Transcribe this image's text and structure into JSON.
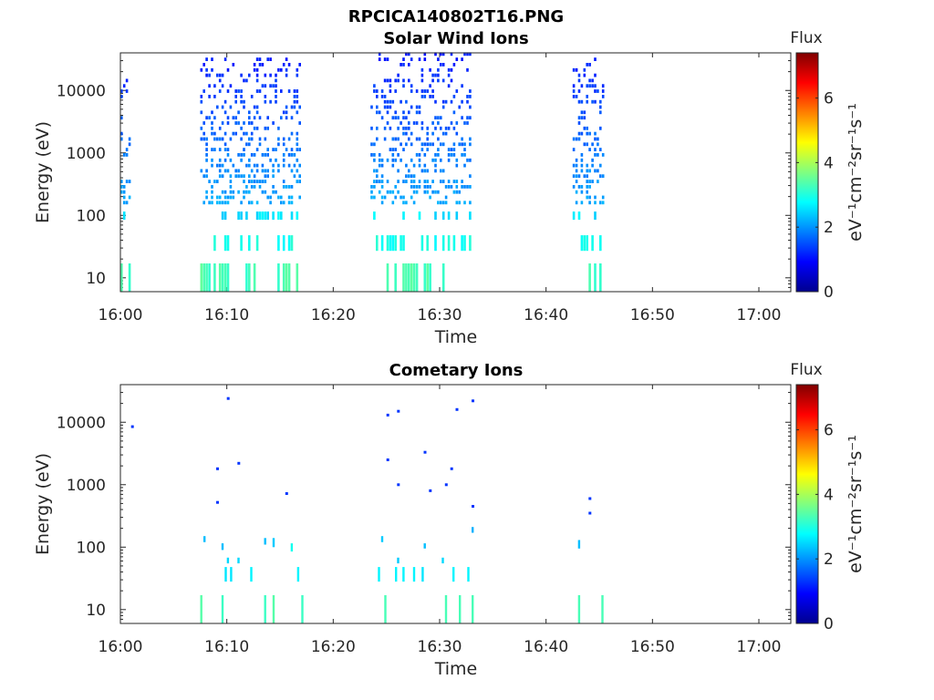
{
  "figure_title": "RPCICA140802T16.PNG",
  "chart_data": [
    {
      "type": "heatmap",
      "title": "Solar Wind Ions",
      "xlabel": "Time",
      "ylabel": "Energy (eV)",
      "yscale": "log",
      "xlim": [
        "16:00",
        "17:03"
      ],
      "ylim": [
        6,
        40000
      ],
      "xticks": [
        "16:00",
        "16:10",
        "16:20",
        "16:30",
        "16:40",
        "16:50",
        "17:00"
      ],
      "yticks": [
        "10",
        "100",
        "1000",
        "10000"
      ],
      "colorbar": {
        "title": "Flux",
        "label": "eV⁻¹cm⁻²sr⁻¹s⁻¹",
        "range": [
          0,
          7.4
        ],
        "ticks": [
          "0",
          "2",
          "4",
          "6"
        ],
        "colormap": "jet"
      },
      "bursts": [
        {
          "start": "16:00",
          "end": "16:01",
          "max_energy": 15000
        },
        {
          "start": "16:07.5",
          "end": "16:17",
          "max_energy": 32000
        },
        {
          "start": "16:23.5",
          "end": "16:33",
          "max_energy": 38000
        },
        {
          "start": "16:42.5",
          "end": "16:45.5",
          "max_energy": 38000
        }
      ]
    },
    {
      "type": "heatmap",
      "title": "Cometary Ions",
      "xlabel": "Time",
      "ylabel": "Energy (eV)",
      "yscale": "log",
      "xlim": [
        "16:00",
        "17:03"
      ],
      "ylim": [
        6,
        40000
      ],
      "xticks": [
        "16:00",
        "16:10",
        "16:20",
        "16:30",
        "16:40",
        "16:50",
        "17:00"
      ],
      "yticks": [
        "10",
        "100",
        "1000",
        "10000"
      ],
      "colorbar": {
        "title": "Flux",
        "label": "eV⁻¹cm⁻²sr⁻¹s⁻¹",
        "range": [
          0,
          7.4
        ],
        "ticks": [
          "0",
          "2",
          "4",
          "6"
        ],
        "colormap": "jet"
      },
      "points": [
        {
          "t": "16:01",
          "e": 8500
        },
        {
          "t": "16:10",
          "e": 24000
        },
        {
          "t": "16:09",
          "e": 1800
        },
        {
          "t": "16:11",
          "e": 2200
        },
        {
          "t": "16:09",
          "e": 520
        },
        {
          "t": "16:15.5",
          "e": 720
        },
        {
          "t": "16:25",
          "e": 13000
        },
        {
          "t": "16:26",
          "e": 15000
        },
        {
          "t": "16:31.5",
          "e": 16000
        },
        {
          "t": "16:33",
          "e": 22000
        },
        {
          "t": "16:25",
          "e": 2500
        },
        {
          "t": "16:28.5",
          "e": 3300
        },
        {
          "t": "16:26",
          "e": 1000
        },
        {
          "t": "16:29",
          "e": 800
        },
        {
          "t": "16:30.5",
          "e": 1000
        },
        {
          "t": "16:31",
          "e": 1800
        },
        {
          "t": "16:33",
          "e": 450
        },
        {
          "t": "16:44",
          "e": 600
        },
        {
          "t": "16:44",
          "e": 350
        }
      ]
    }
  ]
}
